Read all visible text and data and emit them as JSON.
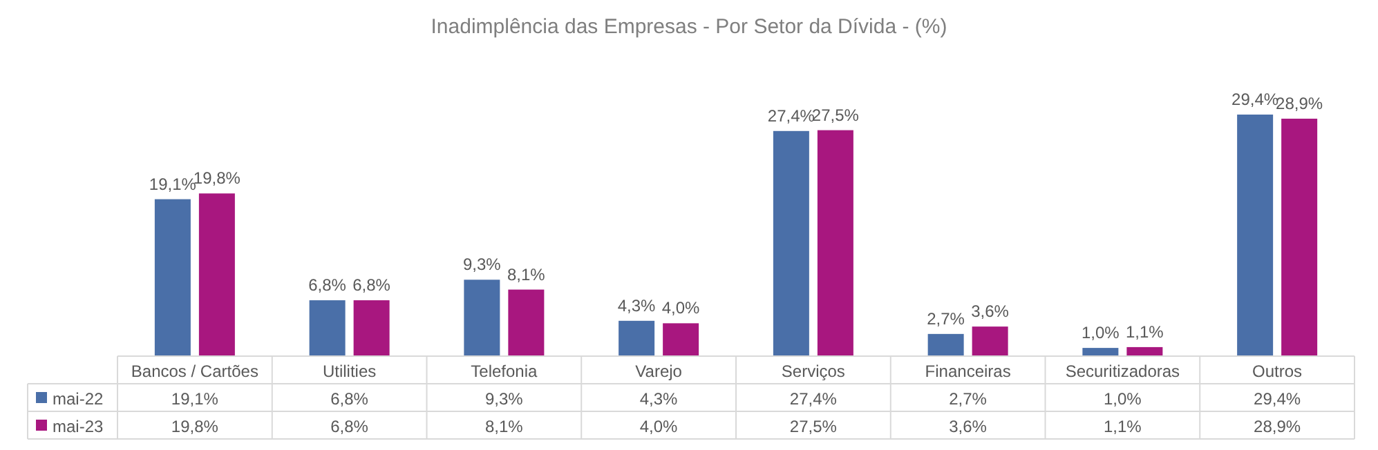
{
  "chart_data": {
    "type": "bar",
    "title": "Inadimplência  das Empresas - Por Setor da Dívida - (%)",
    "categories": [
      "Bancos / Cartões",
      "Utilities",
      "Telefonia",
      "Varejo",
      "Serviços",
      "Financeiras",
      "Securitizadoras",
      "Outros"
    ],
    "series": [
      {
        "name": "mai-22",
        "color": "#4a6fa8",
        "values": [
          19.1,
          6.8,
          9.3,
          4.3,
          27.4,
          2.7,
          1.0,
          29.4
        ],
        "value_labels": [
          "19,1%",
          "6,8%",
          "9,3%",
          "4,3%",
          "27,4%",
          "2,7%",
          "1,0%",
          "29,4%"
        ]
      },
      {
        "name": "mai-23",
        "color": "#a8177f",
        "values": [
          19.8,
          6.8,
          8.1,
          4.0,
          27.5,
          3.6,
          1.1,
          28.9
        ],
        "value_labels": [
          "19,8%",
          "6,8%",
          "8,1%",
          "4,0%",
          "27,5%",
          "3,6%",
          "1,1%",
          "28,9%"
        ]
      }
    ],
    "legend": "bottom"
  }
}
